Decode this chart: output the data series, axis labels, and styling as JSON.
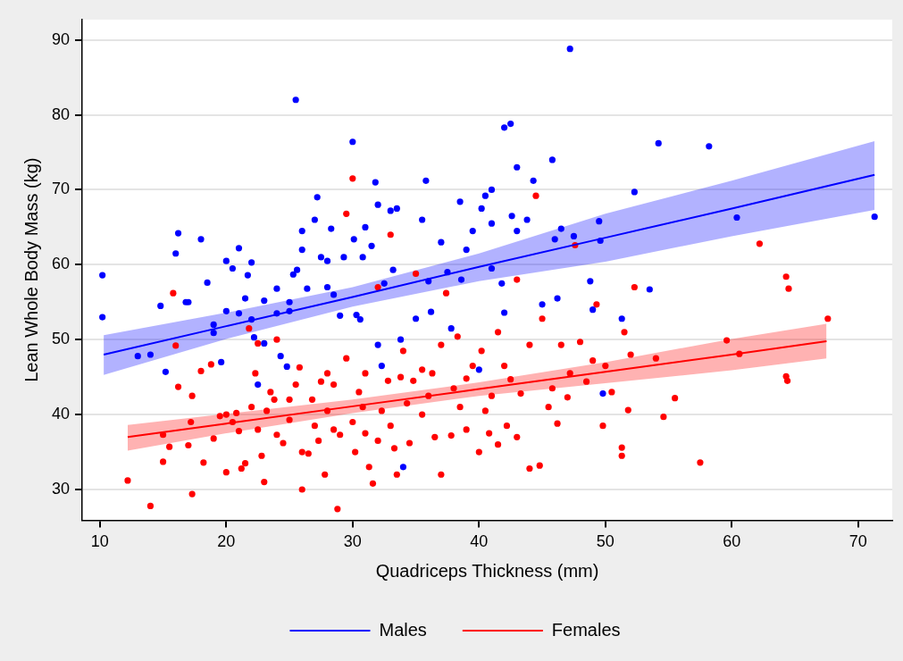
{
  "chart_data": {
    "type": "scatter",
    "xlabel": "Quadriceps Thickness (mm)",
    "ylabel": "Lean Whole Body Mass (kg)",
    "xlim": [
      8.6,
      72.7
    ],
    "ylim": [
      25.9,
      92.7
    ],
    "xticks": [
      10,
      20,
      30,
      40,
      50,
      60,
      70
    ],
    "yticks": [
      30,
      40,
      50,
      60,
      70,
      80,
      90
    ],
    "grid": "y",
    "legend": "bottom",
    "marker": "circle",
    "series": [
      {
        "color": "#0000ff",
        "x": [
          10.2,
          10.2,
          13,
          14,
          14.8,
          15.2,
          16,
          16.2,
          16.8,
          17,
          18,
          18.5,
          19,
          19,
          19.6,
          20,
          20,
          20.5,
          21,
          21,
          21.5,
          21.7,
          22,
          22,
          22.2,
          22.5,
          23,
          23,
          24,
          24,
          24.3,
          24.8,
          25,
          25,
          25.3,
          25.5,
          25.6,
          26,
          26,
          26.4,
          27,
          27.2,
          27.5,
          28,
          28,
          28.3,
          28.5,
          29,
          29.3,
          30,
          30.1,
          30.3,
          30.6,
          30.8,
          31,
          31.5,
          31.8,
          32,
          32,
          32.3,
          32.5,
          33,
          33.2,
          33.5,
          33.8,
          34,
          35,
          35.5,
          35.8,
          36,
          36.2,
          37,
          37.5,
          37.8,
          38.5,
          38.6,
          39,
          39.5,
          40,
          40.2,
          40.5,
          41,
          41,
          41,
          41.8,
          42,
          42,
          42.5,
          42.6,
          43,
          43,
          43.8,
          44.3,
          45,
          45.8,
          46,
          46.2,
          46.5,
          47.2,
          47.5,
          48.8,
          49,
          49.5,
          49.6,
          49.8,
          51.3,
          52.3,
          53.5,
          54.2,
          58.2,
          60.4,
          71.3
        ],
        "values": [
          58.6,
          53,
          47.8,
          48,
          54.5,
          45.7,
          61.5,
          64.2,
          55,
          55,
          63.4,
          57.6,
          50.9,
          52,
          47,
          60.5,
          53.8,
          59.5,
          62.2,
          53.5,
          55.5,
          58.6,
          60.3,
          52.7,
          50.3,
          44,
          49.5,
          55.2,
          56.8,
          53.5,
          47.8,
          46.4,
          53.8,
          55,
          58.7,
          82,
          59.3,
          62,
          64.5,
          56.8,
          66,
          69,
          61,
          60.5,
          57,
          64.8,
          56,
          53.2,
          61,
          76.4,
          63.4,
          53.3,
          52.7,
          61,
          65,
          62.5,
          71,
          68,
          49.3,
          46.5,
          57.5,
          67.2,
          59.3,
          67.5,
          50,
          33,
          52.8,
          66,
          71.2,
          57.8,
          53.7,
          63,
          59,
          51.5,
          68.4,
          58,
          62,
          64.5,
          46,
          67.5,
          69.2,
          65.5,
          70,
          59.5,
          57.5,
          78.3,
          53.6,
          78.8,
          66.5,
          73,
          64.5,
          66,
          71.2,
          54.7,
          74,
          63.4,
          55.5,
          64.8,
          88.8,
          63.8,
          57.8,
          54,
          65.8,
          63.2,
          42.8,
          52.8,
          69.7,
          56.7,
          76.2,
          75.8,
          66.3,
          66.4
        ]
      },
      {
        "color": "#ff0000",
        "x": [
          12.2,
          14,
          15,
          15,
          15.5,
          15.8,
          16,
          16.2,
          17,
          17.2,
          17.3,
          17.3,
          18,
          18.2,
          18.8,
          19,
          19.5,
          20,
          20,
          20.5,
          20.8,
          21,
          21.2,
          21.5,
          21.8,
          22,
          22.3,
          22.5,
          22.5,
          22.8,
          23,
          23.2,
          23.5,
          23.8,
          24,
          24,
          24.5,
          25,
          25,
          25.5,
          25.8,
          26,
          26,
          26.5,
          26.8,
          27,
          27.3,
          27.5,
          27.8,
          28,
          28,
          28.5,
          28.5,
          28.8,
          29,
          29.5,
          29.5,
          30,
          30,
          30.2,
          30.5,
          30.8,
          31,
          31,
          31.3,
          31.6,
          32,
          32,
          32.3,
          32.8,
          33,
          33,
          33.3,
          33.5,
          33.8,
          34,
          34.3,
          34.5,
          34.8,
          35,
          35.5,
          35.5,
          36,
          36.3,
          36.5,
          37,
          37,
          37.4,
          37.8,
          38,
          38.3,
          38.5,
          39,
          39,
          39.5,
          40,
          40.2,
          40.5,
          40.8,
          41,
          41.5,
          41.5,
          42,
          42.2,
          42.5,
          43,
          43,
          43.3,
          44,
          44,
          44.5,
          44.8,
          45,
          45.5,
          45.8,
          46.2,
          46.5,
          47,
          47.2,
          47.6,
          48,
          48.5,
          49,
          49.3,
          49.8,
          50,
          50.5,
          51.3,
          51.3,
          51.5,
          51.8,
          52,
          52.3,
          54,
          54.6,
          55.5,
          57.5,
          59.6,
          60.6,
          62.2,
          64.3,
          64.5,
          64.3,
          64.4,
          67.6
        ],
        "values": [
          31.2,
          27.8,
          37.3,
          33.7,
          35.7,
          56.2,
          49.2,
          43.7,
          35.9,
          39,
          42.5,
          29.4,
          45.8,
          33.6,
          46.7,
          36.8,
          39.8,
          40,
          32.3,
          39,
          40.2,
          37.8,
          32.8,
          33.5,
          51.5,
          41,
          45.5,
          49.5,
          38,
          34.5,
          31,
          40.5,
          43,
          42,
          50,
          37.3,
          36.2,
          39.3,
          42,
          44,
          46.3,
          35,
          30,
          34.8,
          42,
          38.5,
          36.5,
          44.4,
          32,
          40.5,
          45.5,
          38,
          44,
          27.4,
          37.3,
          47.5,
          66.8,
          39,
          71.5,
          35,
          43,
          41,
          37.5,
          45.5,
          33,
          30.8,
          36.5,
          57,
          40.5,
          44.5,
          64,
          38.5,
          35.5,
          32,
          45,
          48.5,
          41.5,
          36.2,
          44.5,
          58.8,
          46,
          40,
          42.5,
          45.5,
          37,
          32,
          49.3,
          56.2,
          37.2,
          43.5,
          50.4,
          41,
          38,
          44.8,
          46.5,
          35,
          48.5,
          40.5,
          37.5,
          42.5,
          51,
          36,
          46.5,
          38.5,
          44.7,
          58,
          37,
          42.8,
          32.8,
          49.3,
          69.2,
          33.2,
          52.8,
          41,
          43.5,
          38.8,
          49.3,
          42.3,
          45.5,
          62.6,
          49.7,
          44.4,
          47.2,
          54.7,
          38.5,
          46.5,
          43,
          35.6,
          34.5,
          51,
          40.6,
          48,
          57,
          47.5,
          39.7,
          42.2,
          33.6,
          49.9,
          48.1,
          62.8,
          58.4,
          56.8,
          45.1,
          44.5,
          52.8
        ]
      },
      {
        "type": "line",
        "name": "Males",
        "marker": "none",
        "color": "#0000ff",
        "x": [
          10.3,
          20,
          30,
          40,
          50,
          60,
          71.3
        ],
        "values": [
          48,
          51.8,
          55.7,
          59.7,
          63.6,
          67.5,
          72
        ],
        "lower": [
          45.3,
          50.1,
          54.4,
          57.8,
          60.4,
          63.8,
          67.3
        ],
        "upper": [
          50.6,
          53.6,
          57,
          61.5,
          66.8,
          71.2,
          76.5
        ]
      },
      {
        "type": "line",
        "name": "Females",
        "marker": "none",
        "color": "#ff0000",
        "x": [
          12.2,
          20,
          30,
          40,
          50,
          60,
          67.5
        ],
        "values": [
          37,
          38.8,
          41.1,
          43.4,
          45.7,
          48,
          49.8
        ],
        "lower": [
          35.2,
          37.5,
          40.2,
          42.5,
          44.2,
          45.9,
          47.5
        ],
        "upper": [
          38.6,
          40.1,
          42,
          44.3,
          47,
          50.1,
          52.1
        ]
      }
    ]
  }
}
